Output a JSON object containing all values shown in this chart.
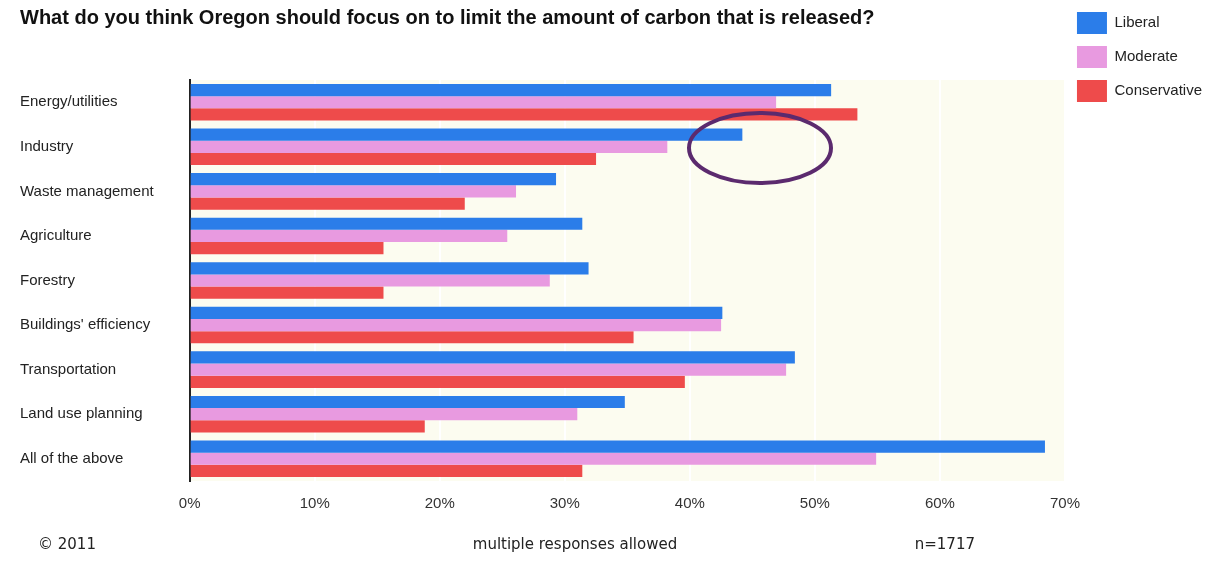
{
  "chart_data": {
    "type": "bar",
    "orientation": "horizontal",
    "title": "What do you think Oregon should focus on to limit the amount of carbon that is released?",
    "categories": [
      "Energy/utilities",
      "Industry",
      "Waste management",
      "Agriculture",
      "Forestry",
      "Buildings' efficiency",
      "Transportation",
      "Land use planning",
      "All of the above"
    ],
    "series": [
      {
        "name": "Liberal",
        "color": "#2b7de9",
        "values": [
          51.3,
          44.2,
          29.3,
          31.4,
          31.9,
          42.6,
          48.4,
          34.8,
          68.4
        ]
      },
      {
        "name": "Moderate",
        "color": "#e89ae0",
        "values": [
          46.9,
          38.2,
          26.1,
          25.4,
          28.8,
          42.5,
          47.7,
          31.0,
          54.9
        ]
      },
      {
        "name": "Conservative",
        "color": "#ee4b4b",
        "values": [
          53.4,
          32.5,
          22.0,
          15.5,
          15.5,
          35.5,
          39.6,
          18.8,
          31.4
        ]
      }
    ],
    "xlim": [
      0,
      70
    ],
    "xticks": [
      {
        "value": 0,
        "label": "0%"
      },
      {
        "value": 10,
        "label": "10%"
      },
      {
        "value": 20,
        "label": "20%"
      },
      {
        "value": 30,
        "label": "30%"
      },
      {
        "value": 40,
        "label": "40%"
      },
      {
        "value": 50,
        "label": "50%"
      },
      {
        "value": 60,
        "label": "60%"
      },
      {
        "value": 70,
        "label": "70%"
      }
    ],
    "grid": "x",
    "legend": "top right",
    "annotations": [
      "© 2011",
      "multiple responses allowed",
      "n=1717"
    ]
  }
}
